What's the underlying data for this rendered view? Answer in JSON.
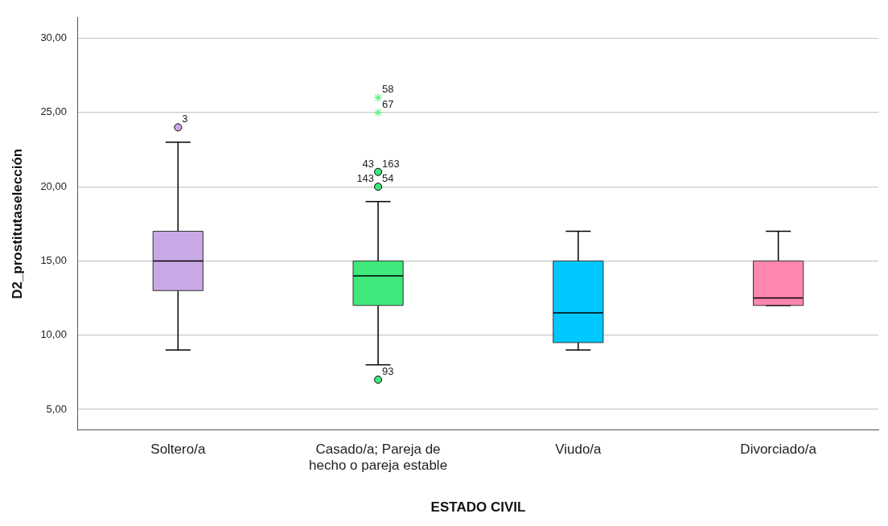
{
  "chart_data": {
    "type": "box",
    "xlabel": "ESTADO CIVIL",
    "ylabel": "D2_prostitutaselección",
    "categories": [
      "Soltero/a",
      "Casado/a; Pareja de hecho o pareja estable",
      "Viudo/a",
      "Divorciado/a"
    ],
    "colors": [
      "#c9a8e6",
      "#3ee87a",
      "#00c8ff",
      "#ff86b0"
    ],
    "boxes": [
      {
        "low": 9,
        "q1": 13,
        "median": 15,
        "q3": 17,
        "high": 23
      },
      {
        "low": 8,
        "q1": 12,
        "median": 14,
        "q3": 15,
        "high": 19
      },
      {
        "low": 9,
        "q1": 9.5,
        "median": 11.5,
        "q3": 15,
        "high": 17
      },
      {
        "low": 12,
        "q1": 12,
        "median": 12.5,
        "q3": 15,
        "high": 17
      }
    ],
    "series": [
      {
        "type": "scatter",
        "marker": "circle",
        "colors": [
          "#c9a8e6",
          "#3ee87a",
          "#3ee87a",
          "#3ee87a"
        ],
        "x": [
          "Soltero/a",
          "Casado/a; Pareja de hecho o pareja estable",
          "Casado/a; Pareja de hecho o pareja estable",
          "Casado/a; Pareja de hecho o pareja estable"
        ],
        "values": [
          24,
          21,
          20,
          7
        ]
      },
      {
        "type": "scatter",
        "marker": "cross",
        "color": "#66ee88",
        "x": [
          "Casado/a; Pareja de hecho o pareja estable",
          "Casado/a; Pareja de hecho o pareja estable"
        ],
        "values": [
          26,
          25
        ]
      }
    ],
    "ylim": [
      3.6,
      31.4
    ],
    "yticks": [
      {
        "value": 5,
        "label": "5,00"
      },
      {
        "value": 10,
        "label": "10,00"
      },
      {
        "value": 15,
        "label": "15,00"
      },
      {
        "value": 20,
        "label": "20,00"
      },
      {
        "value": 25,
        "label": "25,00"
      },
      {
        "value": 30,
        "label": "30,00"
      }
    ],
    "grid": "y",
    "legend": false,
    "annotations": [
      {
        "text": "3",
        "x": "Soltero/a",
        "y": 24
      },
      {
        "text": "163",
        "x": "Casado/a; Pareja de hecho o pareja estable",
        "y": 21
      },
      {
        "text": "43",
        "x": "Casado/a; Pareja de hecho o pareja estable",
        "y": 21
      },
      {
        "text": "54",
        "x": "Casado/a; Pareja de hecho o pareja estable",
        "y": 20
      },
      {
        "text": "143",
        "x": "Casado/a; Pareja de hecho o pareja estable",
        "y": 20
      },
      {
        "text": "58",
        "x": "Casado/a; Pareja de hecho o pareja estable",
        "y": 26
      },
      {
        "text": "67",
        "x": "Casado/a; Pareja de hecho o pareja estable",
        "y": 25
      },
      {
        "text": "93",
        "x": "Casado/a; Pareja de hecho o pareja estable",
        "y": 7
      }
    ]
  }
}
